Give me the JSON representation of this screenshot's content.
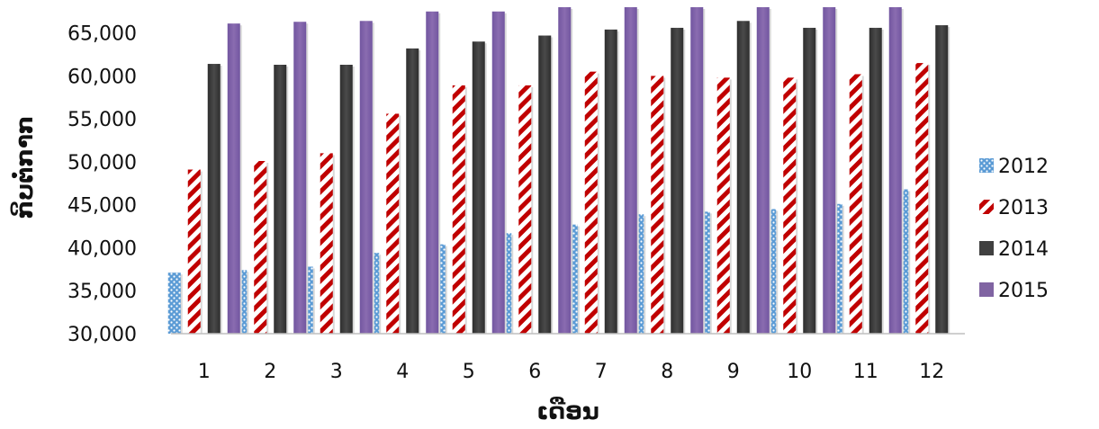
{
  "chart_data": {
    "type": "bar",
    "title": "",
    "xlabel": "ເດືອນ",
    "ylabel": "ກິບຕໍ່ກາກ",
    "categories": [
      "1",
      "2",
      "3",
      "4",
      "5",
      "6",
      "7",
      "8",
      "9",
      "10",
      "11",
      "12"
    ],
    "ylim": [
      30000,
      68000
    ],
    "yticks": [
      30000,
      35000,
      40000,
      45000,
      50000,
      55000,
      60000,
      65000
    ],
    "ytick_labels": [
      "30,000",
      "35,000",
      "40,000",
      "45,000",
      "50,000",
      "55,000",
      "60,000",
      "65,000"
    ],
    "grid": false,
    "legend_position": "right",
    "series": [
      {
        "name": "2012",
        "color": "#5b9bd5",
        "pattern": "dots",
        "values": [
          37100,
          37400,
          37800,
          39400,
          40400,
          41700,
          42700,
          43900,
          44200,
          44500,
          45100,
          46800
        ]
      },
      {
        "name": "2013",
        "color": "#c00000",
        "pattern": "diagonal-stripes",
        "values": [
          49100,
          50100,
          51000,
          55600,
          58900,
          58900,
          60500,
          60000,
          59800,
          59800,
          60200,
          61500
        ]
      },
      {
        "name": "2014",
        "color": "#404040",
        "pattern": "solid",
        "values": [
          61400,
          61300,
          61300,
          63200,
          64000,
          64700,
          65400,
          65600,
          66400,
          65600,
          65600,
          65900
        ]
      },
      {
        "name": "2015",
        "color": "#8064a2",
        "pattern": "solid",
        "values": [
          66100,
          66300,
          66400,
          67500,
          67500,
          68000,
          68000,
          68000,
          68000,
          68000,
          68000,
          null
        ]
      }
    ]
  }
}
